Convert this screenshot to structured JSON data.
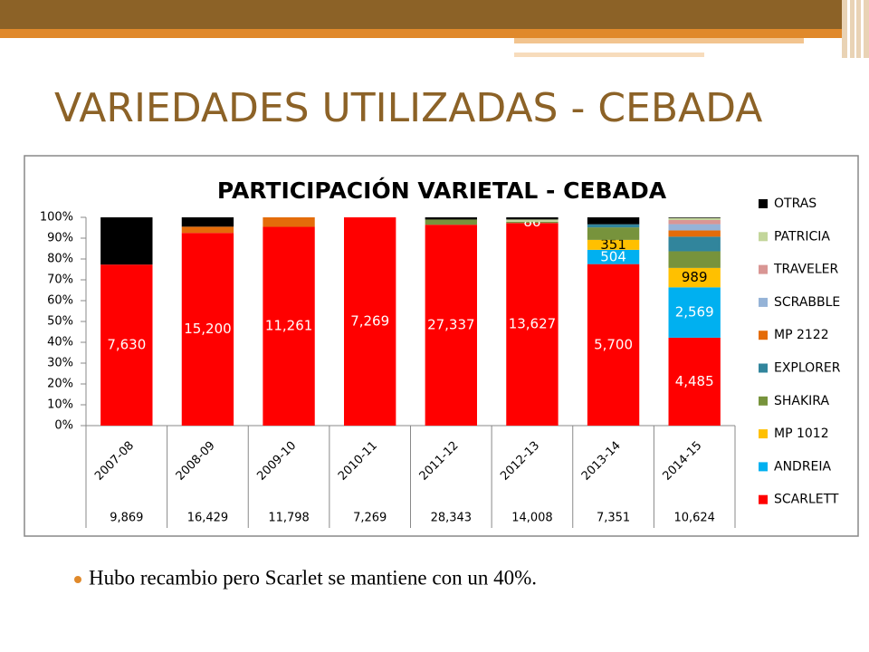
{
  "title": "VARIEDADES UTILIZADAS - CEBADA",
  "bullets": [
    "Hubo recambio pero Scarlet se mantiene con un 40%."
  ],
  "chart_data": {
    "type": "stacked_percent_bar",
    "title": "PARTICIPACIÓN VARIETAL - CEBADA",
    "categories": [
      "2007-08",
      "2008-09",
      "2009-10",
      "2010-11",
      "2011-12",
      "2012-13",
      "2013-14",
      "2014-15"
    ],
    "totals": [
      9869,
      16429,
      11798,
      7269,
      28343,
      14008,
      7351,
      10624
    ],
    "total_labels": [
      "9,869",
      "16,429",
      "11,798",
      "7,269",
      "28,343",
      "14,008",
      "7,351",
      "10,624"
    ],
    "ylim": [
      0,
      100
    ],
    "yticks": [
      {
        "value": 0,
        "label": "0%"
      },
      {
        "value": 10,
        "label": "10%"
      },
      {
        "value": 20,
        "label": "20%"
      },
      {
        "value": 30,
        "label": "30%"
      },
      {
        "value": 40,
        "label": "40%"
      },
      {
        "value": 50,
        "label": "50%"
      },
      {
        "value": 60,
        "label": "60%"
      },
      {
        "value": 70,
        "label": "70%"
      },
      {
        "value": 80,
        "label": "80%"
      },
      {
        "value": 90,
        "label": "90%"
      },
      {
        "value": 100,
        "label": "100%"
      }
    ],
    "legend": "right",
    "series": [
      {
        "name": "SCARLETT",
        "color": "#ff0000",
        "values": [
          7630,
          15200,
          11261,
          7269,
          27337,
          13627,
          5700,
          4485
        ],
        "value_labels": [
          "7,630",
          "15,200",
          "11,261",
          "7,269",
          "27,337",
          "13,627",
          "5,700",
          "4,485"
        ]
      },
      {
        "name": "ANDREIA",
        "color": "#00b0f0",
        "values": [
          null,
          null,
          null,
          null,
          null,
          null,
          504,
          2569
        ],
        "value_labels": [
          null,
          null,
          null,
          null,
          null,
          null,
          "504",
          "2,569"
        ]
      },
      {
        "name": "MP 1012",
        "color": "#ffc000",
        "values": [
          null,
          null,
          null,
          null,
          null,
          null,
          351,
          989
        ],
        "value_labels": [
          null,
          null,
          null,
          null,
          null,
          null,
          "351",
          "989"
        ]
      },
      {
        "name": "SHAKIRA",
        "color": "#77933c",
        "values": [
          null,
          null,
          null,
          null,
          709,
          86,
          441,
          850
        ],
        "value_labels": [
          null,
          null,
          null,
          null,
          null,
          "86",
          null,
          null
        ]
      },
      {
        "name": "EXPLORER",
        "color": "#31859c",
        "values": [
          null,
          null,
          null,
          null,
          null,
          null,
          110,
          744
        ]
      },
      {
        "name": "MP 2122",
        "color": "#e46c0a",
        "values": [
          null,
          493,
          537,
          null,
          null,
          null,
          null,
          319
        ]
      },
      {
        "name": "SCRABBLE",
        "color": "#95b3d7",
        "values": [
          null,
          null,
          null,
          null,
          null,
          null,
          null,
          319
        ]
      },
      {
        "name": "TRAVELER",
        "color": "#d99694",
        "values": [
          null,
          null,
          null,
          null,
          null,
          null,
          null,
          212
        ]
      },
      {
        "name": "PATRICIA",
        "color": "#c3d69b",
        "values": [
          null,
          null,
          null,
          null,
          null,
          150,
          null,
          106
        ]
      },
      {
        "name": "OTRAS",
        "color": "#000000",
        "values": [
          2239,
          736,
          null,
          null,
          297,
          145,
          245,
          31
        ]
      }
    ]
  }
}
